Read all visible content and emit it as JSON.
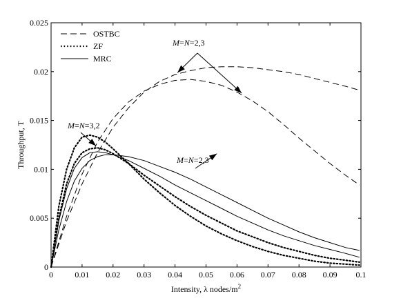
{
  "chart_data": {
    "type": "line",
    "xlabel_main": "Intensity, λ nodes/m",
    "xlabel_sup": "2",
    "ylabel": "Throughput, T",
    "xlim": [
      0,
      0.1
    ],
    "ylim": [
      0,
      0.025
    ],
    "xticks": [
      "0",
      "0.01",
      "0.02",
      "0.03",
      "0.04",
      "0.05",
      "0.06",
      "0.07",
      "0.08",
      "0.09",
      "0.1"
    ],
    "yticks": [
      "0",
      "0.005",
      "0.01",
      "0.015",
      "0.02",
      "0.025"
    ],
    "legend": {
      "position": "top-left",
      "entries": [
        {
          "label": "OSTBC",
          "style": "dashed"
        },
        {
          "label": "ZF",
          "style": "dotted"
        },
        {
          "label": "MRC",
          "style": "solid"
        }
      ]
    },
    "annotations": [
      {
        "text": "M=N=2,3",
        "arrow_to": [
          [
            0.0408,
            0.0199
          ],
          [
            0.0615,
            0.0178
          ]
        ]
      },
      {
        "text": "M=N=3,2",
        "arrow_to": [
          [
            0.0145,
            0.0124
          ]
        ]
      },
      {
        "text": "M=N=2,3",
        "arrow_to": [
          [
            0.0535,
            0.0116
          ]
        ]
      }
    ],
    "series": [
      {
        "style": "dashed",
        "x": [
          0,
          0.005,
          0.01,
          0.015,
          0.02,
          0.025,
          0.03,
          0.035,
          0.04,
          0.045,
          0.05,
          0.055,
          0.06,
          0.065,
          0.07,
          0.075,
          0.08,
          0.085,
          0.09,
          0.095,
          0.0995
        ],
        "y": [
          0,
          0.0047,
          0.0085,
          0.0117,
          0.0143,
          0.0163,
          0.0179,
          0.019,
          0.0197,
          0.0201,
          0.0204,
          0.0205,
          0.0205,
          0.0204,
          0.0202,
          0.02,
          0.0197,
          0.0193,
          0.0189,
          0.0185,
          0.0181
        ]
      },
      {
        "style": "dashed",
        "x": [
          0,
          0.005,
          0.01,
          0.015,
          0.02,
          0.025,
          0.03,
          0.035,
          0.04,
          0.045,
          0.05,
          0.055,
          0.06,
          0.065,
          0.07,
          0.075,
          0.08,
          0.085,
          0.09,
          0.095,
          0.0995
        ],
        "y": [
          0,
          0.0052,
          0.0095,
          0.0128,
          0.0152,
          0.0169,
          0.018,
          0.0187,
          0.0191,
          0.0192,
          0.019,
          0.0186,
          0.0179,
          0.017,
          0.0159,
          0.0146,
          0.0132,
          0.0119,
          0.0106,
          0.0094,
          0.0084
        ]
      },
      {
        "style": "dotted",
        "x": [
          0,
          0.0025,
          0.005,
          0.0075,
          0.01,
          0.0125,
          0.015,
          0.0175,
          0.02,
          0.025,
          0.03,
          0.035,
          0.04,
          0.045,
          0.05,
          0.055,
          0.06,
          0.065,
          0.07,
          0.075,
          0.08,
          0.085,
          0.09,
          0.095,
          0.0995
        ],
        "y": [
          0,
          0.0062,
          0.01,
          0.0122,
          0.0133,
          0.0135,
          0.0133,
          0.0128,
          0.0121,
          0.0106,
          0.009,
          0.0076,
          0.0063,
          0.0052,
          0.0042,
          0.0034,
          0.0027,
          0.0021,
          0.0016,
          0.0012,
          0.0009,
          0.0006,
          0.0004,
          0.0003,
          0.0002
        ]
      },
      {
        "style": "dotted",
        "x": [
          0,
          0.0025,
          0.005,
          0.0075,
          0.01,
          0.0125,
          0.015,
          0.0175,
          0.02,
          0.025,
          0.03,
          0.035,
          0.04,
          0.045,
          0.05,
          0.055,
          0.06,
          0.065,
          0.07,
          0.075,
          0.08,
          0.085,
          0.09,
          0.095,
          0.0995
        ],
        "y": [
          0,
          0.005,
          0.0085,
          0.0106,
          0.0117,
          0.0121,
          0.0122,
          0.012,
          0.0116,
          0.0106,
          0.0094,
          0.0083,
          0.0072,
          0.0062,
          0.0053,
          0.0045,
          0.0037,
          0.0031,
          0.0025,
          0.002,
          0.0016,
          0.0012,
          0.0009,
          0.0007,
          0.0005
        ]
      },
      {
        "style": "solid",
        "x": [
          0,
          0.0025,
          0.005,
          0.0075,
          0.01,
          0.0125,
          0.015,
          0.0175,
          0.02,
          0.025,
          0.03,
          0.035,
          0.04,
          0.045,
          0.05,
          0.055,
          0.06,
          0.065,
          0.07,
          0.075,
          0.08,
          0.085,
          0.09,
          0.095,
          0.0995
        ],
        "y": [
          0,
          0.0047,
          0.008,
          0.0101,
          0.0112,
          0.0117,
          0.0118,
          0.0117,
          0.0115,
          0.0109,
          0.0101,
          0.0093,
          0.0084,
          0.0076,
          0.0068,
          0.006,
          0.0052,
          0.0045,
          0.0038,
          0.0032,
          0.0027,
          0.0022,
          0.0018,
          0.0014,
          0.001
        ]
      },
      {
        "style": "solid",
        "x": [
          0,
          0.0025,
          0.005,
          0.0075,
          0.01,
          0.0125,
          0.015,
          0.0175,
          0.02,
          0.025,
          0.03,
          0.035,
          0.04,
          0.045,
          0.05,
          0.055,
          0.06,
          0.065,
          0.07,
          0.075,
          0.08,
          0.085,
          0.09,
          0.095,
          0.0995
        ],
        "y": [
          0,
          0.0038,
          0.0067,
          0.0088,
          0.0101,
          0.0109,
          0.0113,
          0.0115,
          0.0115,
          0.0113,
          0.0109,
          0.0103,
          0.0097,
          0.009,
          0.0082,
          0.0074,
          0.0066,
          0.0058,
          0.005,
          0.0043,
          0.0036,
          0.003,
          0.0025,
          0.002,
          0.0017
        ]
      }
    ]
  }
}
